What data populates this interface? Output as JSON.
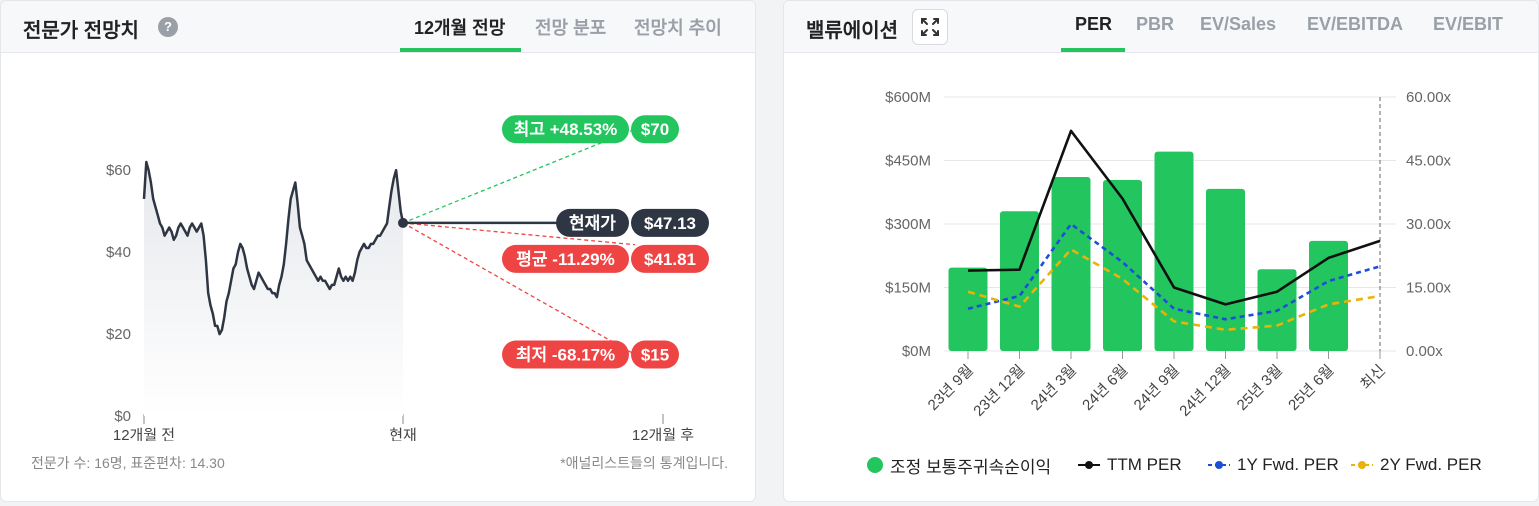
{
  "left_panel": {
    "title": "전문가 전망치",
    "help_glyph": "?",
    "tabs": [
      {
        "label": "12개월 전망",
        "active": true
      },
      {
        "label": "전망 분포",
        "active": false
      },
      {
        "label": "전망치 추이",
        "active": false
      }
    ],
    "footnote_left": "전문가 수: 16명, 표준편차: 14.30",
    "footnote_right": "*애널리스트들의 통계입니다."
  },
  "right_panel": {
    "title": "밸류에이션",
    "tabs": [
      {
        "label": "PER",
        "active": true
      },
      {
        "label": "PBR",
        "active": false
      },
      {
        "label": "EV/Sales",
        "active": false
      },
      {
        "label": "EV/EBITDA",
        "active": false
      },
      {
        "label": "EV/EBIT",
        "active": false
      }
    ]
  },
  "chart_data": [
    {
      "type": "line",
      "y_ticks": [
        "$0",
        "$20",
        "$40",
        "$60"
      ],
      "ylim": [
        0,
        62
      ],
      "x_ticks": [
        "12개월 전",
        "현재",
        "12개월 후"
      ],
      "price_history": [
        53,
        62,
        60,
        57,
        53,
        51,
        49,
        47,
        46,
        44,
        45,
        46,
        45,
        43,
        44,
        46,
        47,
        46,
        45,
        44,
        46,
        47,
        46,
        45,
        46,
        47,
        44,
        38,
        30,
        27,
        25,
        22,
        22,
        20,
        21,
        24,
        28,
        30,
        33,
        36,
        37,
        40,
        42,
        41,
        39,
        36,
        34,
        32,
        31,
        33,
        35,
        34,
        33,
        32,
        31,
        31,
        30,
        30,
        29,
        32,
        34,
        37,
        42,
        48,
        53,
        55,
        57,
        52,
        46,
        44,
        42,
        38,
        37,
        36,
        35,
        34,
        33,
        34,
        33,
        33,
        32,
        31,
        32,
        32,
        34,
        36,
        34,
        33,
        34,
        33,
        34,
        33,
        35,
        38,
        40,
        41,
        42,
        41,
        41,
        42,
        42,
        43,
        44,
        44,
        45,
        46,
        47,
        51,
        55,
        58,
        60,
        55,
        50,
        47.13
      ],
      "current": {
        "label": "현재가",
        "value": "$47.13",
        "price": 47.13
      },
      "targets": [
        {
          "label": "최고 +48.53%",
          "value": "$70",
          "price": 70,
          "color": "#22c55e"
        },
        {
          "label": "평균 -11.29%",
          "value": "$41.81",
          "price": 41.81,
          "color": "#ef4444"
        },
        {
          "label": "최저 -68.17%",
          "value": "$15",
          "price": 15,
          "color": "#ef4444"
        }
      ]
    },
    {
      "type": "bar",
      "categories": [
        "23년 9월",
        "23년 12월",
        "24년 3월",
        "24년 6월",
        "24년 9월",
        "24년 12월",
        "25년 3월",
        "25년 6월",
        "최신"
      ],
      "y_left_ticks": [
        "$0M",
        "$150M",
        "$300M",
        "$450M",
        "$600M"
      ],
      "y_left_lim": [
        0,
        600
      ],
      "y_right_ticks": [
        "0.00x",
        "15.00x",
        "30.00x",
        "45.00x",
        "60.00x"
      ],
      "y_right_lim": [
        0,
        60
      ],
      "series": [
        {
          "name": "조정 보통주귀속순이익",
          "kind": "bar",
          "color": "#22c55e",
          "values": [
            197,
            330,
            411,
            404,
            471,
            383,
            193,
            260,
            null
          ]
        },
        {
          "name": "TTM PER",
          "kind": "line",
          "color": "#111111",
          "dash": "",
          "values": [
            19.0,
            19.2,
            52.0,
            36.0,
            15.0,
            11.0,
            14.0,
            22.0,
            26.0
          ]
        },
        {
          "name": "1Y Fwd. PER",
          "kind": "line",
          "color": "#1d4ed8",
          "dash": "5,4",
          "values": [
            10.0,
            13.0,
            30.0,
            21.0,
            10.0,
            7.5,
            9.5,
            16.5,
            20.0
          ]
        },
        {
          "name": "2Y Fwd. PER",
          "kind": "line",
          "color": "#eab308",
          "dash": "7,5",
          "values": [
            14.0,
            10.5,
            24.0,
            17.0,
            7.0,
            5.0,
            6.0,
            11.0,
            13.0
          ]
        }
      ]
    }
  ]
}
